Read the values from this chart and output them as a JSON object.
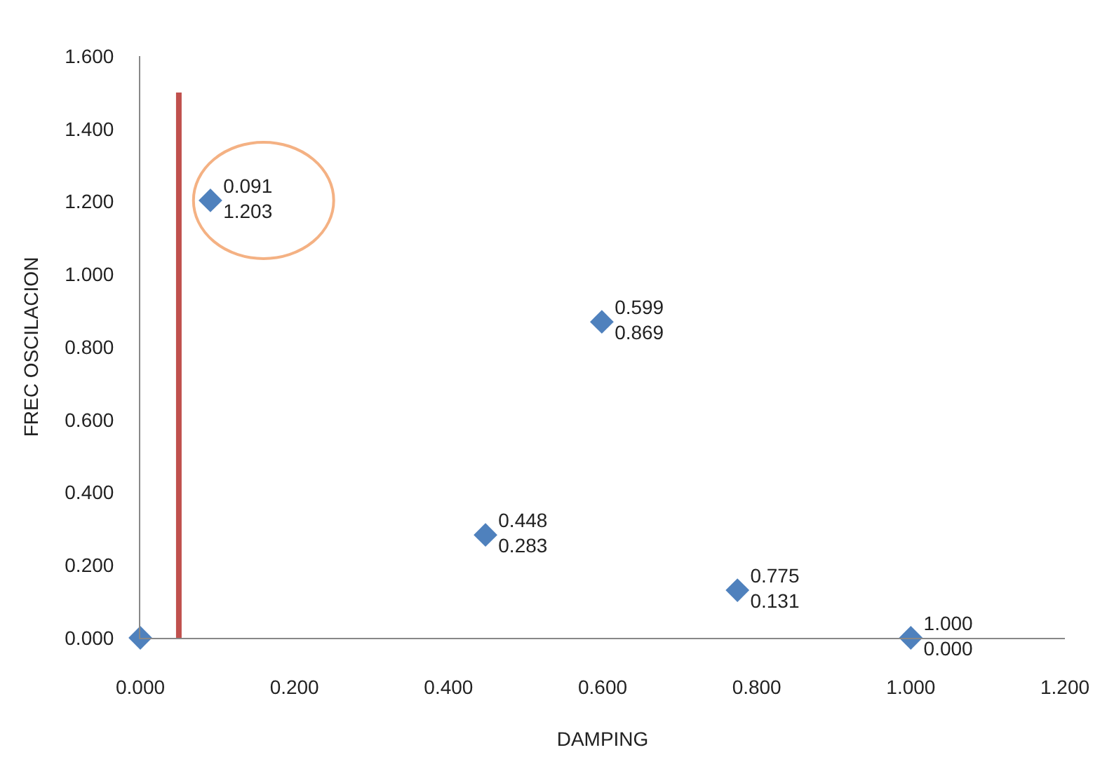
{
  "chart_data": {
    "type": "scatter",
    "xlabel": "DAMPING",
    "ylabel": "FREC OSCILACION",
    "xlim": [
      0,
      1.2
    ],
    "xticks": [
      {
        "value": 0,
        "label": "0.000"
      },
      {
        "value": 0.2,
        "label": "0.200"
      },
      {
        "value": 0.4,
        "label": "0.400"
      },
      {
        "value": 0.6,
        "label": "0.600"
      },
      {
        "value": 0.8,
        "label": "0.800"
      },
      {
        "value": 1.0,
        "label": "1.000"
      },
      {
        "value": 1.2,
        "label": "1.200"
      }
    ],
    "ylim": [
      0,
      1.6
    ],
    "yticks": [
      {
        "value": 0,
        "label": "0.000"
      },
      {
        "value": 0.2,
        "label": "0.200"
      },
      {
        "value": 0.4,
        "label": "0.400"
      },
      {
        "value": 0.6,
        "label": "0.600"
      },
      {
        "value": 0.8,
        "label": "0.800"
      },
      {
        "value": 1.0,
        "label": "1.000"
      },
      {
        "value": 1.2,
        "label": "1.200"
      },
      {
        "value": 1.4,
        "label": "1.400"
      },
      {
        "value": 1.6,
        "label": "1.600"
      }
    ],
    "series": [
      {
        "color": "#4f81bd",
        "marker": "diamond",
        "x": [
          0,
          0.091,
          0.599,
          0.448,
          0.775,
          1.0
        ],
        "values": [
          0,
          1.203,
          0.869,
          0.283,
          0.131,
          0.0
        ],
        "value_labels": [
          null,
          "0.091\n1.203",
          "0.599\n0.869",
          "0.448\n0.283",
          "0.775\n0.131",
          "1.000\n0.000"
        ]
      },
      {
        "type": "line",
        "color": "#c0504d",
        "marker": "none",
        "line_style": "solid",
        "x": [
          0.05,
          0.05
        ],
        "values": [
          0,
          1.5
        ]
      }
    ]
  }
}
